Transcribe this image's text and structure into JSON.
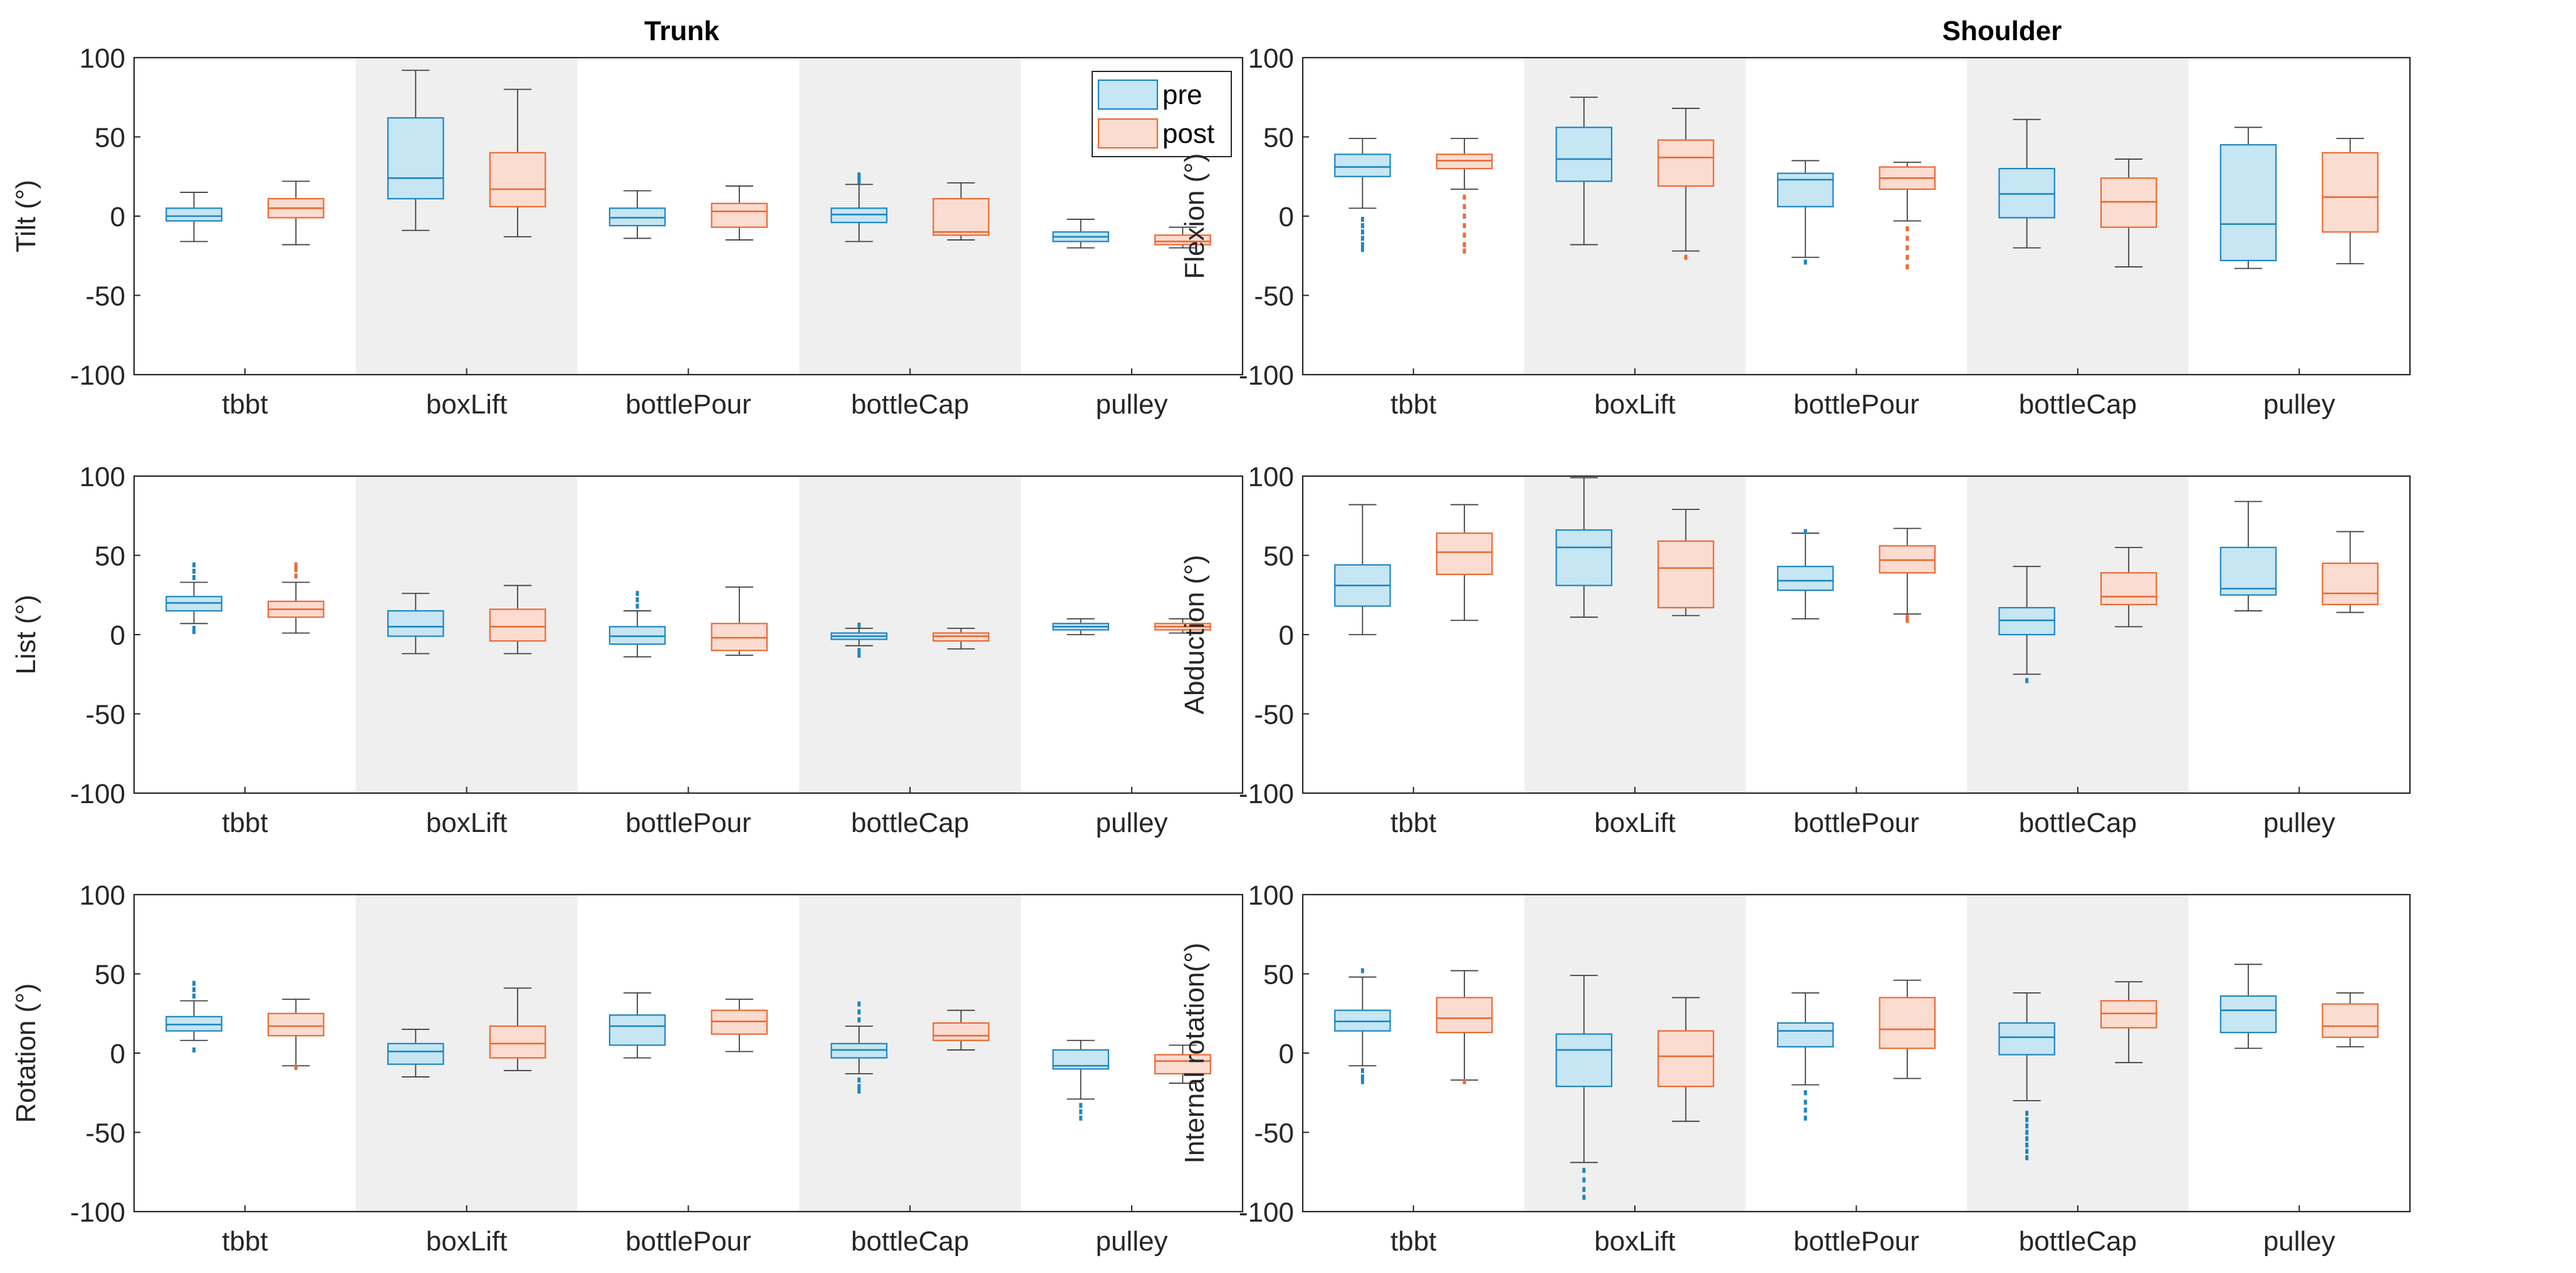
{
  "figure": {
    "column_titles": [
      "Trunk",
      "Shoulder"
    ],
    "legend": {
      "pre_label": "pre",
      "post_label": "post"
    }
  },
  "colors": {
    "pre_fill": "#c6e6f4",
    "pre_edge": "#1f85c2",
    "post_fill": "#fbdcd0",
    "post_edge": "#ea6a35",
    "whisker": "#404040",
    "shade": "#efefef",
    "axis": "#262626",
    "text": "#262626"
  },
  "chart_data": [
    {
      "type": "boxplot",
      "panel": "trunk-tilt",
      "title": "Trunk",
      "ylabel": "Tilt (°)",
      "categories": [
        "tbbt",
        "boxLift",
        "bottlePour",
        "bottleCap",
        "pulley"
      ],
      "ylim": [
        -100,
        100
      ],
      "yticks": [
        100,
        50,
        0,
        -50,
        -100
      ],
      "shaded_categories": [
        "boxLift",
        "bottleCap"
      ],
      "legend": "top-right",
      "series": [
        {
          "name": "pre",
          "boxes": [
            {
              "category": "tbbt",
              "whislo": -16,
              "q1": -3,
              "med": 0,
              "q3": 5,
              "whishi": 15,
              "outliers": []
            },
            {
              "category": "boxLift",
              "whislo": -9,
              "q1": 11,
              "med": 24,
              "q3": 62,
              "whishi": 92,
              "outliers": []
            },
            {
              "category": "bottlePour",
              "whislo": -14,
              "q1": -6,
              "med": -1,
              "q3": 5,
              "whishi": 16,
              "outliers": []
            },
            {
              "category": "bottleCap",
              "whislo": -16,
              "q1": -4,
              "med": 1,
              "q3": 5,
              "whishi": 20,
              "outliers": [
                22,
                24,
                26
              ]
            },
            {
              "category": "pulley",
              "whislo": -20,
              "q1": -16,
              "med": -13,
              "q3": -10,
              "whishi": -2,
              "outliers": []
            }
          ]
        },
        {
          "name": "post",
          "boxes": [
            {
              "category": "tbbt",
              "whislo": -18,
              "q1": -1,
              "med": 5,
              "q3": 11,
              "whishi": 22,
              "outliers": []
            },
            {
              "category": "boxLift",
              "whislo": -13,
              "q1": 6,
              "med": 17,
              "q3": 40,
              "whishi": 80,
              "outliers": []
            },
            {
              "category": "bottlePour",
              "whislo": -15,
              "q1": -7,
              "med": 3,
              "q3": 8,
              "whishi": 19,
              "outliers": []
            },
            {
              "category": "bottleCap",
              "whislo": -15,
              "q1": -12,
              "med": -10,
              "q3": 11,
              "whishi": 21,
              "outliers": []
            },
            {
              "category": "pulley",
              "whislo": -20,
              "q1": -18,
              "med": -16,
              "q3": -12,
              "whishi": -7,
              "outliers": []
            }
          ]
        }
      ]
    },
    {
      "type": "boxplot",
      "panel": "shoulder-flexion",
      "title": "Shoulder",
      "ylabel": "Flexion (°)",
      "categories": [
        "tbbt",
        "boxLift",
        "bottlePour",
        "bottleCap",
        "pulley"
      ],
      "ylim": [
        -100,
        100
      ],
      "yticks": [
        100,
        50,
        0,
        -50,
        -100
      ],
      "shaded_categories": [
        "boxLift",
        "bottleCap"
      ],
      "series": [
        {
          "name": "pre",
          "boxes": [
            {
              "category": "tbbt",
              "whislo": 5,
              "q1": 25,
              "med": 31,
              "q3": 39,
              "whishi": 49,
              "outliers": [
                -2,
                -6,
                -10,
                -14,
                -18,
                -21
              ]
            },
            {
              "category": "boxLift",
              "whislo": -18,
              "q1": 22,
              "med": 36,
              "q3": 56,
              "whishi": 75,
              "outliers": []
            },
            {
              "category": "bottlePour",
              "whislo": -26,
              "q1": 6,
              "med": 23,
              "q3": 27,
              "whishi": 35,
              "outliers": [
                -29
              ]
            },
            {
              "category": "bottleCap",
              "whislo": -20,
              "q1": -1,
              "med": 14,
              "q3": 30,
              "whishi": 61,
              "outliers": []
            },
            {
              "category": "pulley",
              "whislo": -33,
              "q1": -28,
              "med": -5,
              "q3": 45,
              "whishi": 56,
              "outliers": []
            }
          ]
        },
        {
          "name": "post",
          "boxes": [
            {
              "category": "tbbt",
              "whislo": 17,
              "q1": 30,
              "med": 35,
              "q3": 39,
              "whishi": 49,
              "outliers": [
                12,
                6,
                0,
                -6,
                -12,
                -18,
                -22
              ]
            },
            {
              "category": "boxLift",
              "whislo": -22,
              "q1": 19,
              "med": 37,
              "q3": 48,
              "whishi": 68,
              "outliers": [
                -26
              ]
            },
            {
              "category": "bottlePour",
              "whislo": -3,
              "q1": 17,
              "med": 24,
              "q3": 31,
              "whishi": 34,
              "outliers": [
                -8,
                -14,
                -20,
                -26,
                -32
              ]
            },
            {
              "category": "bottleCap",
              "whislo": -32,
              "q1": -7,
              "med": 9,
              "q3": 24,
              "whishi": 36,
              "outliers": []
            },
            {
              "category": "pulley",
              "whislo": -30,
              "q1": -10,
              "med": 12,
              "q3": 40,
              "whishi": 49,
              "outliers": []
            }
          ]
        }
      ]
    },
    {
      "type": "boxplot",
      "panel": "trunk-list",
      "ylabel": "List (°)",
      "categories": [
        "tbbt",
        "boxLift",
        "bottlePour",
        "bottleCap",
        "pulley"
      ],
      "ylim": [
        -100,
        100
      ],
      "yticks": [
        100,
        50,
        0,
        -50,
        -100
      ],
      "shaded_categories": [
        "boxLift",
        "bottleCap"
      ],
      "series": [
        {
          "name": "pre",
          "boxes": [
            {
              "category": "tbbt",
              "whislo": 7,
              "q1": 15,
              "med": 20,
              "q3": 24,
              "whishi": 33,
              "outliers": [
                36,
                40,
                44,
                2,
                4
              ]
            },
            {
              "category": "boxLift",
              "whislo": -12,
              "q1": -1,
              "med": 5,
              "q3": 15,
              "whishi": 26,
              "outliers": []
            },
            {
              "category": "bottlePour",
              "whislo": -14,
              "q1": -6,
              "med": -1,
              "q3": 5,
              "whishi": 15,
              "outliers": [
                18,
                22,
                26
              ]
            },
            {
              "category": "bottleCap",
              "whislo": -7,
              "q1": -3,
              "med": -1,
              "q3": 1,
              "whishi": 4,
              "outliers": [
                6,
                -10,
                -13
              ]
            },
            {
              "category": "pulley",
              "whislo": 0,
              "q1": 3,
              "med": 5,
              "q3": 7,
              "whishi": 10,
              "outliers": []
            }
          ]
        },
        {
          "name": "post",
          "boxes": [
            {
              "category": "tbbt",
              "whislo": 1,
              "q1": 11,
              "med": 16,
              "q3": 21,
              "whishi": 33,
              "outliers": [
                37,
                41,
                44
              ]
            },
            {
              "category": "boxLift",
              "whislo": -12,
              "q1": -4,
              "med": 5,
              "q3": 16,
              "whishi": 31,
              "outliers": []
            },
            {
              "category": "bottlePour",
              "whislo": -13,
              "q1": -10,
              "med": -2,
              "q3": 7,
              "whishi": 30,
              "outliers": []
            },
            {
              "category": "bottleCap",
              "whislo": -9,
              "q1": -4,
              "med": -1,
              "q3": 1,
              "whishi": 4,
              "outliers": []
            },
            {
              "category": "pulley",
              "whislo": 1,
              "q1": 3,
              "med": 5,
              "q3": 7,
              "whishi": 10,
              "outliers": []
            }
          ]
        }
      ]
    },
    {
      "type": "boxplot",
      "panel": "shoulder-abduction",
      "ylabel": "Abduction (°)",
      "categories": [
        "tbbt",
        "boxLift",
        "bottlePour",
        "bottleCap",
        "pulley"
      ],
      "ylim": [
        -100,
        100
      ],
      "yticks": [
        100,
        50,
        0,
        -50,
        -100
      ],
      "shaded_categories": [
        "boxLift",
        "bottleCap"
      ],
      "series": [
        {
          "name": "pre",
          "boxes": [
            {
              "category": "tbbt",
              "whislo": 0,
              "q1": 18,
              "med": 31,
              "q3": 44,
              "whishi": 82,
              "outliers": []
            },
            {
              "category": "boxLift",
              "whislo": 11,
              "q1": 31,
              "med": 55,
              "q3": 66,
              "whishi": 99,
              "outliers": []
            },
            {
              "category": "bottlePour",
              "whislo": 10,
              "q1": 28,
              "med": 34,
              "q3": 43,
              "whishi": 64,
              "outliers": [
                65
              ]
            },
            {
              "category": "bottleCap",
              "whislo": -25,
              "q1": 0,
              "med": 9,
              "q3": 17,
              "whishi": 43,
              "outliers": [
                -29
              ]
            },
            {
              "category": "pulley",
              "whislo": 15,
              "q1": 25,
              "med": 29,
              "q3": 55,
              "whishi": 84,
              "outliers": []
            }
          ]
        },
        {
          "name": "post",
          "boxes": [
            {
              "category": "tbbt",
              "whislo": 9,
              "q1": 38,
              "med": 52,
              "q3": 64,
              "whishi": 82,
              "outliers": []
            },
            {
              "category": "boxLift",
              "whislo": 12,
              "q1": 17,
              "med": 42,
              "q3": 59,
              "whishi": 79,
              "outliers": []
            },
            {
              "category": "bottlePour",
              "whislo": 13,
              "q1": 39,
              "med": 47,
              "q3": 56,
              "whishi": 67,
              "outliers": [
                9,
                11
              ]
            },
            {
              "category": "bottleCap",
              "whislo": 5,
              "q1": 19,
              "med": 24,
              "q3": 39,
              "whishi": 55,
              "outliers": []
            },
            {
              "category": "pulley",
              "whislo": 14,
              "q1": 19,
              "med": 26,
              "q3": 45,
              "whishi": 65,
              "outliers": []
            }
          ]
        }
      ]
    },
    {
      "type": "boxplot",
      "panel": "trunk-rotation",
      "ylabel": "Rotation (°)",
      "categories": [
        "tbbt",
        "boxLift",
        "bottlePour",
        "bottleCap",
        "pulley"
      ],
      "ylim": [
        -100,
        100
      ],
      "yticks": [
        100,
        50,
        0,
        -50,
        -100
      ],
      "shaded_categories": [
        "boxLift",
        "bottleCap"
      ],
      "series": [
        {
          "name": "pre",
          "boxes": [
            {
              "category": "tbbt",
              "whislo": 8,
              "q1": 14,
              "med": 18,
              "q3": 23,
              "whishi": 33,
              "outliers": [
                36,
                40,
                44,
                2
              ]
            },
            {
              "category": "boxLift",
              "whislo": -15,
              "q1": -7,
              "med": 1,
              "q3": 6,
              "whishi": 15,
              "outliers": []
            },
            {
              "category": "bottlePour",
              "whislo": -3,
              "q1": 5,
              "med": 17,
              "q3": 24,
              "whishi": 38,
              "outliers": []
            },
            {
              "category": "bottleCap",
              "whislo": -13,
              "q1": -3,
              "med": 2,
              "q3": 6,
              "whishi": 17,
              "outliers": [
                21,
                26,
                31,
                -17,
                -21,
                -24
              ]
            },
            {
              "category": "pulley",
              "whislo": -29,
              "q1": -10,
              "med": -8,
              "q3": 2,
              "whishi": 8,
              "outliers": [
                -33,
                -37,
                -41
              ]
            }
          ]
        },
        {
          "name": "post",
          "boxes": [
            {
              "category": "tbbt",
              "whislo": -8,
              "q1": 11,
              "med": 17,
              "q3": 25,
              "whishi": 34,
              "outliers": [
                -9
              ]
            },
            {
              "category": "boxLift",
              "whislo": -11,
              "q1": -3,
              "med": 6,
              "q3": 17,
              "whishi": 41,
              "outliers": []
            },
            {
              "category": "bottlePour",
              "whislo": 1,
              "q1": 12,
              "med": 20,
              "q3": 27,
              "whishi": 34,
              "outliers": []
            },
            {
              "category": "bottleCap",
              "whislo": 2,
              "q1": 8,
              "med": 11,
              "q3": 19,
              "whishi": 27,
              "outliers": []
            },
            {
              "category": "pulley",
              "whislo": -19,
              "q1": -13,
              "med": -5,
              "q3": -1,
              "whishi": 5,
              "outliers": []
            }
          ]
        }
      ]
    },
    {
      "type": "boxplot",
      "panel": "shoulder-internal-rotation",
      "ylabel": "Internal rotation(°)",
      "categories": [
        "tbbt",
        "boxLift",
        "bottlePour",
        "bottleCap",
        "pulley"
      ],
      "ylim": [
        -100,
        100
      ],
      "yticks": [
        100,
        50,
        0,
        -50,
        -100
      ],
      "shaded_categories": [
        "boxLift",
        "bottleCap"
      ],
      "series": [
        {
          "name": "pre",
          "boxes": [
            {
              "category": "tbbt",
              "whislo": -8,
              "q1": 14,
              "med": 20,
              "q3": 27,
              "whishi": 48,
              "outliers": [
                52,
                -11,
                -15,
                -18
              ]
            },
            {
              "category": "boxLift",
              "whislo": -69,
              "q1": -21,
              "med": 2,
              "q3": 12,
              "whishi": 49,
              "outliers": [
                -74,
                -80,
                -86,
                -91
              ]
            },
            {
              "category": "bottlePour",
              "whislo": -20,
              "q1": 4,
              "med": 14,
              "q3": 19,
              "whishi": 38,
              "outliers": [
                -25,
                -31,
                -36,
                -41
              ]
            },
            {
              "category": "bottleCap",
              "whislo": -30,
              "q1": -1,
              "med": 10,
              "q3": 19,
              "whishi": 38,
              "outliers": [
                -38,
                -42,
                -46,
                -50,
                -54,
                -58,
                -62,
                -66
              ]
            },
            {
              "category": "pulley",
              "whislo": 3,
              "q1": 13,
              "med": 27,
              "q3": 36,
              "whishi": 56,
              "outliers": []
            }
          ]
        },
        {
          "name": "post",
          "boxes": [
            {
              "category": "tbbt",
              "whislo": -17,
              "q1": 13,
              "med": 22,
              "q3": 35,
              "whishi": 52,
              "outliers": [
                -18
              ]
            },
            {
              "category": "boxLift",
              "whislo": -43,
              "q1": -21,
              "med": -2,
              "q3": 14,
              "whishi": 35,
              "outliers": []
            },
            {
              "category": "bottlePour",
              "whislo": -16,
              "q1": 3,
              "med": 15,
              "q3": 35,
              "whishi": 46,
              "outliers": []
            },
            {
              "category": "bottleCap",
              "whislo": -6,
              "q1": 16,
              "med": 25,
              "q3": 33,
              "whishi": 45,
              "outliers": []
            },
            {
              "category": "pulley",
              "whislo": 4,
              "q1": 10,
              "med": 17,
              "q3": 31,
              "whishi": 38,
              "outliers": []
            }
          ]
        }
      ]
    }
  ]
}
